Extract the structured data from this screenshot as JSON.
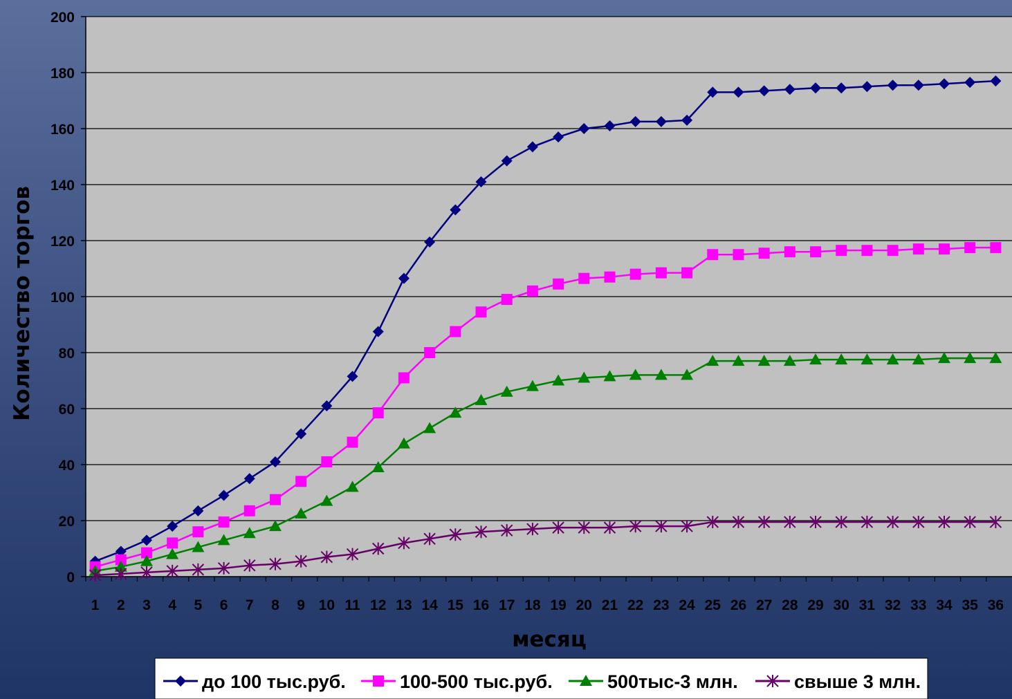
{
  "chart_data": {
    "type": "line",
    "title": "",
    "xlabel": "месяц",
    "ylabel": "Количество торгов",
    "ylim": [
      0,
      200
    ],
    "yticks": [
      0,
      20,
      40,
      60,
      80,
      100,
      120,
      140,
      160,
      180,
      200
    ],
    "grid": "horizontal",
    "legend_position": "bottom",
    "categories": [
      "1",
      "2",
      "3",
      "4",
      "5",
      "6",
      "7",
      "8",
      "9",
      "10",
      "11",
      "12",
      "13",
      "14",
      "15",
      "16",
      "17",
      "18",
      "19",
      "20",
      "21",
      "22",
      "23",
      "24",
      "25",
      "26",
      "27",
      "28",
      "29",
      "30",
      "31",
      "32",
      "33",
      "34",
      "35",
      "36"
    ],
    "series": [
      {
        "name": "до 100 тыс.руб.",
        "color": "#000080",
        "marker": "diamond",
        "values": [
          5.5,
          9,
          13,
          18,
          23.5,
          29,
          35,
          41,
          51,
          61,
          71.5,
          87.5,
          106.5,
          119.5,
          131,
          141,
          148.5,
          153.5,
          157,
          160,
          161,
          162.5,
          162.5,
          163,
          173,
          173,
          173.5,
          174,
          174.5,
          174.5,
          175,
          175.5,
          175.5,
          176,
          176.5,
          177
        ]
      },
      {
        "name": "100-500 тыс.руб.",
        "color": "#ff00ff",
        "marker": "square",
        "values": [
          3.5,
          6,
          8.5,
          12,
          16,
          19.5,
          23.5,
          27.5,
          34,
          41,
          48,
          58.5,
          71,
          80,
          87.5,
          94.5,
          99,
          102,
          104.5,
          106.5,
          107,
          108,
          108.5,
          108.5,
          115,
          115,
          115.5,
          116,
          116,
          116.5,
          116.5,
          116.5,
          117,
          117,
          117.5,
          117.5
        ]
      },
      {
        "name": "500тыс-3 млн.",
        "color": "#008000",
        "marker": "triangle",
        "values": [
          2,
          3.5,
          5.5,
          8,
          10.5,
          13,
          15.5,
          18,
          22.5,
          27,
          32,
          39,
          47.5,
          53,
          58.5,
          63,
          66,
          68,
          70,
          71,
          71.5,
          72,
          72,
          72,
          77,
          77,
          77,
          77,
          77.5,
          77.5,
          77.5,
          77.5,
          77.5,
          78,
          78,
          78
        ]
      },
      {
        "name": "свыше 3 млн.",
        "color": "#660066",
        "marker": "asterisk",
        "values": [
          0.5,
          1,
          1.5,
          2,
          2.5,
          3,
          4,
          4.5,
          5.5,
          7,
          8,
          10,
          12,
          13.5,
          15,
          16,
          16.5,
          17,
          17.5,
          17.5,
          17.5,
          18,
          18,
          18,
          19.5,
          19.5,
          19.5,
          19.5,
          19.5,
          19.5,
          19.5,
          19.5,
          19.5,
          19.5,
          19.5,
          19.5
        ]
      }
    ]
  }
}
